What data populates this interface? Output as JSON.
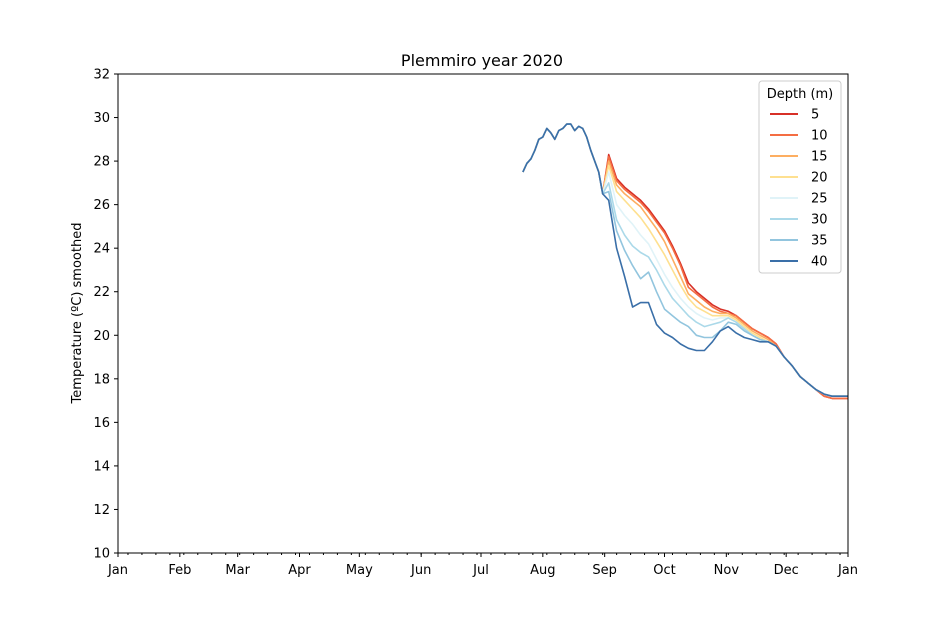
{
  "chart_data": {
    "type": "line",
    "title": "Plemmiro year 2020",
    "xlabel": "",
    "ylabel": "Temperature (ºC) smoothed",
    "ylim": [
      10,
      32
    ],
    "yticks": [
      10,
      12,
      14,
      16,
      18,
      20,
      22,
      24,
      26,
      28,
      30,
      32
    ],
    "xlim": [
      "2020-01-01",
      "2021-01-01"
    ],
    "xticks": [
      {
        "label": "Jan",
        "date": "2020-01-01"
      },
      {
        "label": "Feb",
        "date": "2020-02-01"
      },
      {
        "label": "Mar",
        "date": "2020-03-01"
      },
      {
        "label": "Apr",
        "date": "2020-04-01"
      },
      {
        "label": "May",
        "date": "2020-05-01"
      },
      {
        "label": "Jun",
        "date": "2020-06-01"
      },
      {
        "label": "Jul",
        "date": "2020-07-01"
      },
      {
        "label": "Aug",
        "date": "2020-08-01"
      },
      {
        "label": "Sep",
        "date": "2020-09-01"
      },
      {
        "label": "Oct",
        "date": "2020-10-01"
      },
      {
        "label": "Nov",
        "date": "2020-11-01"
      },
      {
        "label": "Dec",
        "date": "2020-12-01"
      },
      {
        "label": "Jan",
        "date": "2021-01-01"
      }
    ],
    "grid": false,
    "legend": {
      "title": "Depth (m)",
      "placement": "top-right"
    },
    "common": {
      "x": [
        "2020-07-22",
        "2020-07-24",
        "2020-07-26",
        "2020-07-28",
        "2020-07-30",
        "2020-08-01",
        "2020-08-03",
        "2020-08-05",
        "2020-08-07",
        "2020-08-09",
        "2020-08-11",
        "2020-08-13",
        "2020-08-15",
        "2020-08-17",
        "2020-08-19",
        "2020-08-21",
        "2020-08-23",
        "2020-08-25",
        "2020-08-27",
        "2020-08-29",
        "2020-08-31"
      ],
      "y": [
        27.5,
        27.9,
        28.1,
        28.5,
        29.0,
        29.1,
        29.5,
        29.3,
        29.0,
        29.4,
        29.5,
        29.7,
        29.7,
        29.4,
        29.6,
        29.5,
        29.1,
        28.5,
        28.0,
        27.5,
        26.5
      ]
    },
    "x": [
      "2020-09-03",
      "2020-09-07",
      "2020-09-11",
      "2020-09-15",
      "2020-09-19",
      "2020-09-23",
      "2020-09-27",
      "2020-10-01",
      "2020-10-05",
      "2020-10-09",
      "2020-10-13",
      "2020-10-17",
      "2020-10-21",
      "2020-10-25",
      "2020-10-29",
      "2020-11-02",
      "2020-11-06",
      "2020-11-10",
      "2020-11-14",
      "2020-11-18",
      "2020-11-22",
      "2020-11-26",
      "2020-11-30",
      "2020-12-04",
      "2020-12-08",
      "2020-12-12",
      "2020-12-16",
      "2020-12-20",
      "2020-12-24",
      "2020-12-28",
      "2021-01-01"
    ],
    "series": [
      {
        "name": "5",
        "color": "#d73027",
        "values": [
          28.3,
          27.2,
          26.8,
          26.5,
          26.2,
          25.8,
          25.3,
          24.8,
          24.1,
          23.3,
          22.4,
          22.0,
          21.7,
          21.4,
          21.2,
          21.1,
          20.9,
          20.6,
          20.3,
          20.1,
          19.9,
          19.6,
          19.0,
          18.6,
          18.1,
          17.8,
          17.5,
          17.2,
          17.1,
          17.1,
          17.1
        ]
      },
      {
        "name": "10",
        "color": "#f46d43",
        "values": [
          28.2,
          27.1,
          26.7,
          26.4,
          26.1,
          25.7,
          25.2,
          24.7,
          24.0,
          23.2,
          22.2,
          21.9,
          21.6,
          21.3,
          21.1,
          21.0,
          20.9,
          20.6,
          20.3,
          20.1,
          19.9,
          19.6,
          19.0,
          18.6,
          18.1,
          17.8,
          17.5,
          17.2,
          17.1,
          17.1,
          17.1
        ]
      },
      {
        "name": "15",
        "color": "#fdae61",
        "values": [
          28.0,
          26.9,
          26.5,
          26.2,
          25.9,
          25.4,
          24.9,
          24.3,
          23.5,
          22.7,
          21.9,
          21.6,
          21.3,
          21.1,
          21.0,
          21.0,
          20.8,
          20.5,
          20.2,
          20.0,
          19.8,
          19.5,
          19.0,
          18.6,
          18.1,
          17.8,
          17.5,
          17.3,
          17.2,
          17.2,
          17.2
        ]
      },
      {
        "name": "20",
        "color": "#fee090",
        "values": [
          27.8,
          26.6,
          26.2,
          25.8,
          25.4,
          24.9,
          24.3,
          23.7,
          23.0,
          22.3,
          21.7,
          21.3,
          21.1,
          20.9,
          20.9,
          20.9,
          20.7,
          20.4,
          20.1,
          19.9,
          19.7,
          19.5,
          19.0,
          18.6,
          18.1,
          17.8,
          17.5,
          17.3,
          17.2,
          17.2,
          17.2
        ]
      },
      {
        "name": "25",
        "color": "#e0f3f8",
        "values": [
          27.5,
          26.0,
          25.5,
          25.1,
          24.6,
          24.2,
          23.5,
          22.8,
          22.2,
          21.7,
          21.3,
          21.0,
          20.8,
          20.7,
          20.8,
          20.8,
          20.6,
          20.3,
          20.0,
          19.8,
          19.7,
          19.5,
          19.0,
          18.6,
          18.1,
          17.8,
          17.5,
          17.3,
          17.2,
          17.2,
          17.2
        ]
      },
      {
        "name": "30",
        "color": "#abd9e9",
        "values": [
          27.0,
          25.3,
          24.6,
          24.1,
          23.8,
          23.6,
          23.0,
          22.3,
          21.7,
          21.3,
          20.9,
          20.6,
          20.4,
          20.5,
          20.6,
          20.8,
          20.6,
          20.3,
          20.0,
          19.8,
          19.7,
          19.5,
          19.0,
          18.6,
          18.1,
          17.8,
          17.5,
          17.3,
          17.2,
          17.2,
          17.2
        ]
      },
      {
        "name": "35",
        "color": "#92c5de",
        "values": [
          26.6,
          24.8,
          23.9,
          23.2,
          22.6,
          22.9,
          22.0,
          21.2,
          20.9,
          20.6,
          20.4,
          20.0,
          19.9,
          19.9,
          20.2,
          20.6,
          20.5,
          20.2,
          20.0,
          19.8,
          19.7,
          19.5,
          19.0,
          18.6,
          18.1,
          17.8,
          17.5,
          17.3,
          17.2,
          17.2,
          17.2
        ]
      },
      {
        "name": "40",
        "color": "#3a6fa8",
        "values": [
          26.2,
          24.0,
          22.7,
          21.3,
          21.5,
          21.5,
          20.5,
          20.1,
          19.9,
          19.6,
          19.4,
          19.3,
          19.3,
          19.7,
          20.2,
          20.4,
          20.1,
          19.9,
          19.8,
          19.7,
          19.7,
          19.5,
          19.0,
          18.6,
          18.1,
          17.8,
          17.5,
          17.3,
          17.2,
          17.2,
          17.2
        ]
      }
    ]
  }
}
